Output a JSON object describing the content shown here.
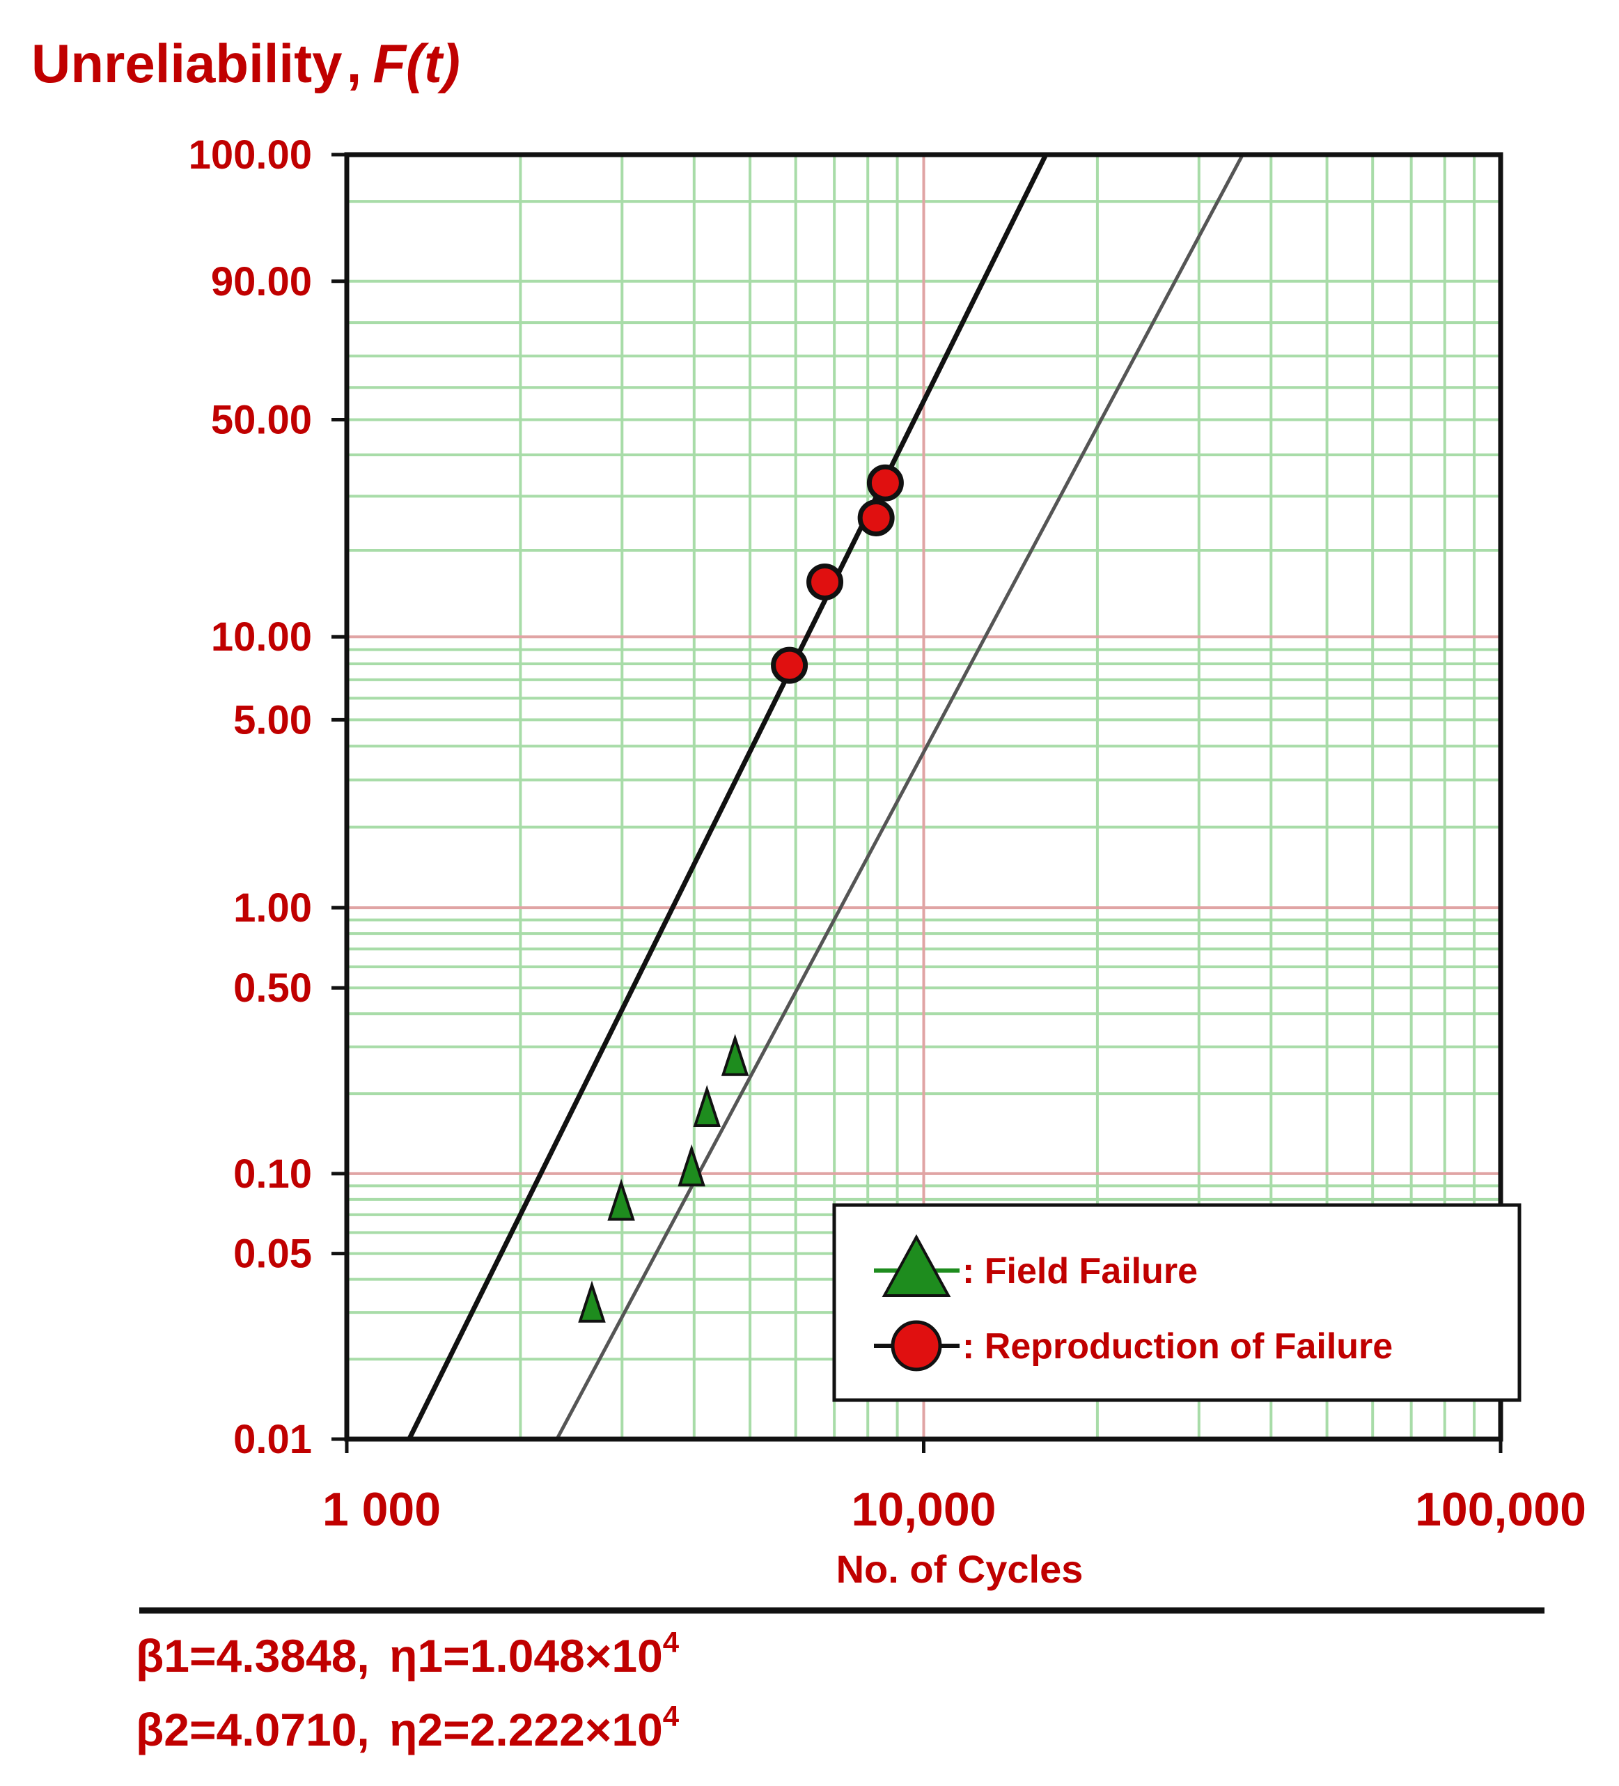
{
  "chart_data": {
    "type": "scatter",
    "title": "",
    "ylabel": {
      "main": "Unreliability",
      "sep": ",",
      "symbol": "F(t)"
    },
    "xlabel": "No. of Cycles",
    "x_scale": "log",
    "y_scale": "weibull",
    "xlim": [
      1000,
      100000
    ],
    "ylim": [
      0.01,
      100
    ],
    "x_tick_labels": [
      {
        "value": 1000,
        "label": "1 000"
      },
      {
        "value": 10000,
        "label": "10,000"
      },
      {
        "value": 100000,
        "label": "100,000"
      }
    ],
    "y_tick_labels": [
      {
        "value": 100,
        "label": "100.00"
      },
      {
        "value": 90,
        "label": "90.00"
      },
      {
        "value": 50,
        "label": "50.00"
      },
      {
        "value": 10,
        "label": "10.00"
      },
      {
        "value": 5,
        "label": "5.00"
      },
      {
        "value": 1,
        "label": "1.00"
      },
      {
        "value": 0.5,
        "label": "0.50"
      },
      {
        "value": 0.1,
        "label": "0.10"
      },
      {
        "value": 0.05,
        "label": "0.05"
      },
      {
        "value": 0.01,
        "label": "0.01"
      }
    ],
    "grid": true,
    "legend_position": "bottom-right",
    "series": [
      {
        "name": ": Field Failure",
        "marker": "triangle",
        "color": "#1e8c1e",
        "points": [
          {
            "x": 2660,
            "y": 0.031
          },
          {
            "x": 2990,
            "y": 0.075
          },
          {
            "x": 3960,
            "y": 0.101
          },
          {
            "x": 4210,
            "y": 0.169
          },
          {
            "x": 4710,
            "y": 0.263
          }
        ],
        "fit_line": {
          "beta": 4.071,
          "eta": 22220
        }
      },
      {
        "name": ": Reproduction of Failure",
        "marker": "circle",
        "color": "#e01010",
        "points": [
          {
            "x": 5850,
            "y": 7.9
          },
          {
            "x": 6740,
            "y": 15.6
          },
          {
            "x": 8270,
            "y": 25.6
          },
          {
            "x": 8580,
            "y": 33.0
          }
        ],
        "fit_line": {
          "beta": 4.3848,
          "eta": 10480
        }
      }
    ],
    "parameters": [
      {
        "lhs": "β1=4.3848,",
        "eta": "η1=1.048",
        "times": "×",
        "base": "10",
        "exp": "4"
      },
      {
        "lhs": "β2=4.0710,",
        "eta": "η2=2.222",
        "times": "×",
        "base": "10",
        "exp": "4"
      }
    ]
  },
  "colors": {
    "accent": "#c00000",
    "grid_green": "#a8dca8",
    "grid_red": "#e0a4a4",
    "field_marker": "#1e8c1e",
    "repro_marker": "#e01010"
  }
}
